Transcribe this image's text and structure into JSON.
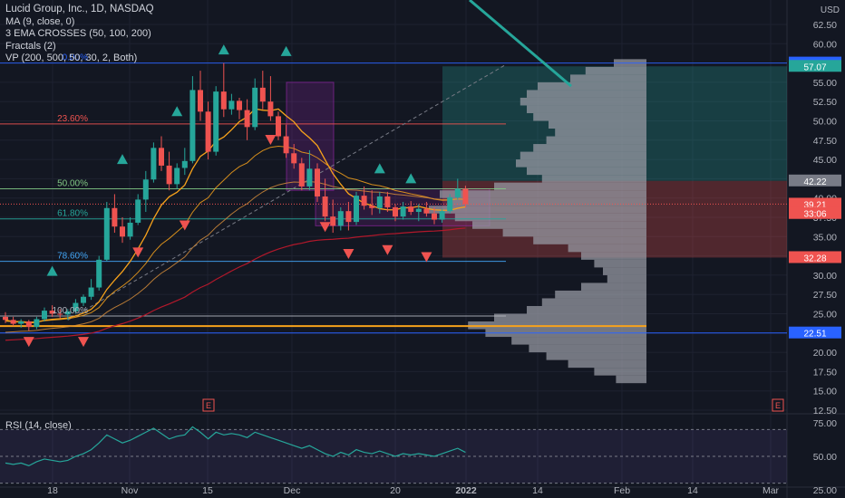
{
  "legend": {
    "title": "Lucid Group, Inc., 1D, NASDAQ",
    "ma": "MA (9, close, 0)",
    "ema": "3 EMA CROSSES (50, 100, 200)",
    "fractals": "Fractals (2)",
    "vp": "VP (200, 500, 50, 30, 2, Both)"
  },
  "currency": "USD",
  "rsi_label": "RSI (14, close)",
  "earnings_marker": "E",
  "colors": {
    "background": "#131722",
    "up": "#26a69a",
    "down": "#ef5350",
    "ma": "#f7a21b",
    "ema200": "#b2182b",
    "rsi": "#26a69a",
    "fib_blue": "#2962ff"
  },
  "chart_data": [
    {
      "type": "candlestick",
      "title": "Lucid Group, Inc., 1D, NASDAQ",
      "y_axis_ticks": [
        "62.50",
        "60.00",
        "57.50",
        "55.00",
        "52.50",
        "50.00",
        "47.50",
        "45.00",
        "42.50",
        "40.00",
        "37.50",
        "35.00",
        "32.50",
        "30.00",
        "27.50",
        "25.00",
        "22.50",
        "20.00",
        "17.50",
        "15.00",
        "12.50"
      ],
      "ylim": [
        12.5,
        62.5
      ],
      "x_axis_ticks": [
        "18",
        "Nov",
        "15",
        "Dec",
        "20",
        "2022",
        "14",
        "Feb",
        "14",
        "Mar"
      ],
      "price_tags": [
        {
          "label": "57.50",
          "value": 57.5,
          "color": "#2962ff"
        },
        {
          "label": "57.07",
          "value": 57.07,
          "color": "#26a69a"
        },
        {
          "label": "42.22",
          "value": 42.22,
          "color": "#787b86"
        },
        {
          "label": "39.21",
          "value": 39.21,
          "color": "#ef5350"
        },
        {
          "label": "33:06",
          "value": 38.0,
          "color": "#ef5350"
        },
        {
          "label": "32.28",
          "value": 32.28,
          "color": "#ef5350"
        },
        {
          "label": "22.51",
          "value": 22.51,
          "color": "#2962ff"
        }
      ],
      "fib_levels": [
        {
          "label": "0.00%",
          "value": 57.5,
          "color": "#2962ff"
        },
        {
          "label": "23.60%",
          "value": 49.6,
          "color": "#ef5350"
        },
        {
          "label": "50.00%",
          "value": 41.2,
          "color": "#81c784"
        },
        {
          "label": "61.80%",
          "value": 37.3,
          "color": "#26a69a"
        },
        {
          "label": "78.60%",
          "value": 31.8,
          "color": "#42a5f5"
        },
        {
          "label": "100.00%",
          "value": 24.7,
          "color": "#b2b5be"
        }
      ],
      "candles": [
        {
          "o": 24.6,
          "h": 25.2,
          "l": 23.8,
          "c": 24.2
        },
        {
          "o": 24.2,
          "h": 24.6,
          "l": 23.4,
          "c": 23.7
        },
        {
          "o": 23.7,
          "h": 24.3,
          "l": 23.2,
          "c": 24.0
        },
        {
          "o": 24.0,
          "h": 24.2,
          "l": 22.8,
          "c": 23.3
        },
        {
          "o": 23.3,
          "h": 24.6,
          "l": 23.0,
          "c": 24.3
        },
        {
          "o": 24.3,
          "h": 25.8,
          "l": 24.0,
          "c": 25.4
        },
        {
          "o": 25.4,
          "h": 26.1,
          "l": 24.6,
          "c": 25.0
        },
        {
          "o": 25.0,
          "h": 25.6,
          "l": 24.4,
          "c": 24.9
        },
        {
          "o": 24.9,
          "h": 25.6,
          "l": 24.2,
          "c": 25.3
        },
        {
          "o": 25.3,
          "h": 26.9,
          "l": 25.0,
          "c": 26.4
        },
        {
          "o": 26.4,
          "h": 27.5,
          "l": 26.0,
          "c": 27.2
        },
        {
          "o": 27.2,
          "h": 29.5,
          "l": 26.8,
          "c": 28.4
        },
        {
          "o": 28.4,
          "h": 32.5,
          "l": 28.0,
          "c": 32.0
        },
        {
          "o": 32.0,
          "h": 39.5,
          "l": 31.8,
          "c": 38.7
        },
        {
          "o": 38.7,
          "h": 40.5,
          "l": 35.5,
          "c": 36.3
        },
        {
          "o": 36.3,
          "h": 37.5,
          "l": 34.2,
          "c": 35.0
        },
        {
          "o": 35.0,
          "h": 37.5,
          "l": 34.6,
          "c": 36.8
        },
        {
          "o": 36.8,
          "h": 40.5,
          "l": 36.5,
          "c": 39.8
        },
        {
          "o": 39.8,
          "h": 43.5,
          "l": 38.2,
          "c": 42.4
        },
        {
          "o": 42.4,
          "h": 47.2,
          "l": 42.0,
          "c": 46.5
        },
        {
          "o": 46.5,
          "h": 48.0,
          "l": 43.5,
          "c": 44.2
        },
        {
          "o": 44.2,
          "h": 46.0,
          "l": 41.0,
          "c": 41.8
        },
        {
          "o": 41.8,
          "h": 44.5,
          "l": 41.2,
          "c": 43.9
        },
        {
          "o": 43.9,
          "h": 46.5,
          "l": 43.0,
          "c": 44.8
        },
        {
          "o": 44.8,
          "h": 55.8,
          "l": 44.5,
          "c": 54.0
        },
        {
          "o": 54.0,
          "h": 56.5,
          "l": 50.0,
          "c": 51.2
        },
        {
          "o": 51.2,
          "h": 52.5,
          "l": 45.0,
          "c": 46.0
        },
        {
          "o": 46.0,
          "h": 54.5,
          "l": 45.5,
          "c": 53.8
        },
        {
          "o": 53.8,
          "h": 57.5,
          "l": 50.5,
          "c": 51.5
        },
        {
          "o": 51.5,
          "h": 53.5,
          "l": 50.8,
          "c": 52.6
        },
        {
          "o": 52.6,
          "h": 53.0,
          "l": 50.2,
          "c": 51.4
        },
        {
          "o": 51.4,
          "h": 52.8,
          "l": 47.5,
          "c": 49.2
        },
        {
          "o": 49.2,
          "h": 55.5,
          "l": 48.8,
          "c": 54.3
        },
        {
          "o": 54.3,
          "h": 56.5,
          "l": 51.5,
          "c": 52.5
        },
        {
          "o": 52.5,
          "h": 55.8,
          "l": 50.0,
          "c": 50.6
        },
        {
          "o": 50.6,
          "h": 51.2,
          "l": 47.5,
          "c": 48.0
        },
        {
          "o": 48.0,
          "h": 49.5,
          "l": 45.2,
          "c": 45.8
        },
        {
          "o": 45.8,
          "h": 47.0,
          "l": 43.8,
          "c": 44.5
        },
        {
          "o": 44.5,
          "h": 45.2,
          "l": 41.0,
          "c": 41.5
        },
        {
          "o": 41.5,
          "h": 46.2,
          "l": 41.0,
          "c": 43.8
        },
        {
          "o": 43.8,
          "h": 44.5,
          "l": 39.5,
          "c": 40.2
        },
        {
          "o": 40.2,
          "h": 42.5,
          "l": 37.0,
          "c": 37.6
        },
        {
          "o": 37.6,
          "h": 39.8,
          "l": 35.5,
          "c": 36.4
        },
        {
          "o": 36.4,
          "h": 38.8,
          "l": 35.8,
          "c": 38.3
        },
        {
          "o": 38.3,
          "h": 39.5,
          "l": 35.8,
          "c": 36.9
        },
        {
          "o": 36.9,
          "h": 40.8,
          "l": 36.5,
          "c": 40.3
        },
        {
          "o": 40.3,
          "h": 41.5,
          "l": 38.5,
          "c": 39.0
        },
        {
          "o": 39.0,
          "h": 41.0,
          "l": 37.8,
          "c": 38.7
        },
        {
          "o": 38.7,
          "h": 40.8,
          "l": 38.0,
          "c": 40.2
        },
        {
          "o": 40.2,
          "h": 40.8,
          "l": 38.2,
          "c": 38.8
        },
        {
          "o": 38.8,
          "h": 39.2,
          "l": 37.0,
          "c": 37.6
        },
        {
          "o": 37.6,
          "h": 39.5,
          "l": 37.2,
          "c": 38.9
        },
        {
          "o": 38.9,
          "h": 39.6,
          "l": 37.8,
          "c": 38.2
        },
        {
          "o": 38.2,
          "h": 39.2,
          "l": 37.0,
          "c": 38.6
        },
        {
          "o": 38.6,
          "h": 39.5,
          "l": 37.6,
          "c": 38.0
        },
        {
          "o": 38.0,
          "h": 38.8,
          "l": 36.6,
          "c": 37.2
        },
        {
          "o": 37.2,
          "h": 38.6,
          "l": 36.8,
          "c": 38.3
        },
        {
          "o": 38.3,
          "h": 40.5,
          "l": 38.0,
          "c": 40.1
        },
        {
          "o": 40.1,
          "h": 42.5,
          "l": 39.8,
          "c": 41.2
        },
        {
          "o": 41.2,
          "h": 41.6,
          "l": 38.8,
          "c": 39.2
        }
      ],
      "rsi": {
        "title": "RSI (14, close)",
        "y_axis_ticks": [
          "75.00",
          "50.00",
          "25.00"
        ],
        "ylim": [
          25,
          75
        ],
        "bands": [
          70,
          50,
          30
        ],
        "values": [
          45,
          44,
          45,
          43,
          46,
          48,
          47,
          46,
          47,
          50,
          52,
          55,
          60,
          66,
          63,
          60,
          62,
          65,
          68,
          71,
          67,
          63,
          65,
          66,
          72,
          68,
          63,
          68,
          66,
          67,
          66,
          64,
          68,
          66,
          64,
          62,
          60,
          58,
          56,
          58,
          55,
          52,
          50,
          53,
          51,
          55,
          53,
          52,
          54,
          52,
          50,
          52,
          51,
          52,
          51,
          50,
          52,
          54,
          56,
          53
        ]
      }
    }
  ]
}
